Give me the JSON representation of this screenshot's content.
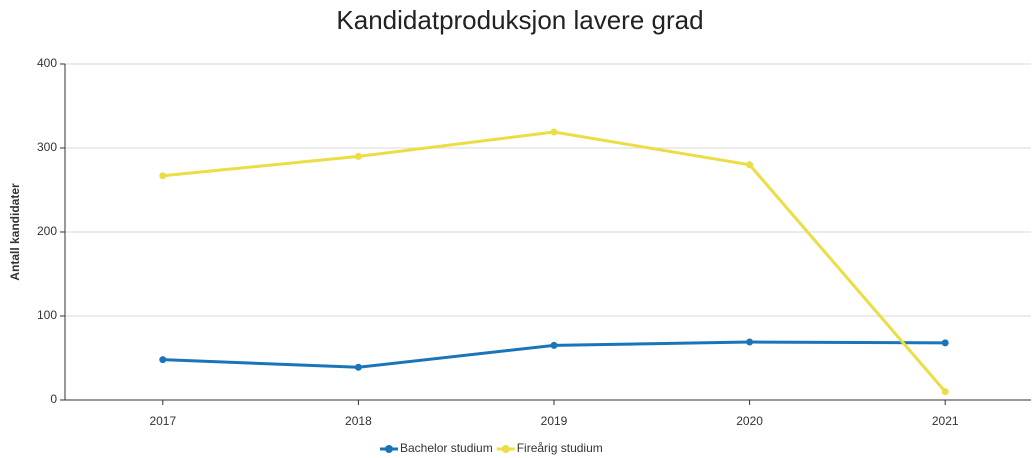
{
  "chart_data": {
    "type": "line",
    "title": "Kandidatproduksjon lavere grad",
    "y_label": "Antall kandidater",
    "categories": [
      "2017",
      "2018",
      "2019",
      "2020",
      "2021"
    ],
    "series": [
      {
        "name": "Bachelor studium",
        "color": "#1a75b8",
        "values": [
          48,
          39,
          65,
          69,
          68
        ]
      },
      {
        "name": "Fireårig studium",
        "color": "#ebdd45",
        "values": [
          267,
          290,
          319,
          280,
          10
        ]
      }
    ],
    "ylim": [
      0,
      400
    ],
    "yticks": [
      0,
      100,
      200,
      300,
      400
    ],
    "grid": true
  }
}
